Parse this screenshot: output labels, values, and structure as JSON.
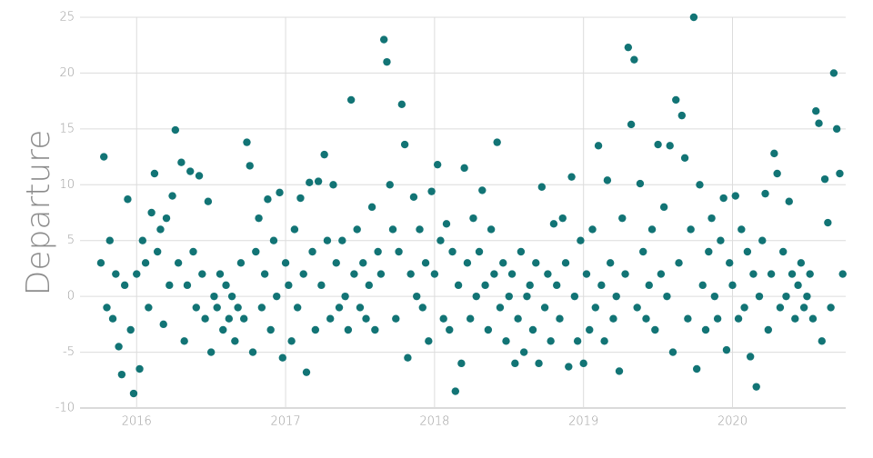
{
  "chart_data": {
    "type": "scatter",
    "y_label": "Departure",
    "color": "#127475",
    "grid": true,
    "xlim": [
      2015.62,
      2020.76
    ],
    "xticks": [
      2016,
      2017,
      2018,
      2019,
      2020
    ],
    "ylim": [
      -10,
      25
    ],
    "yticks": [
      -10,
      -5,
      0,
      5,
      10,
      15,
      20,
      25
    ],
    "x": [
      2015.76,
      2015.78,
      2015.8,
      2015.82,
      2015.84,
      2015.86,
      2015.88,
      2015.9,
      2015.92,
      2015.94,
      2015.96,
      2015.98,
      2016,
      2016.02,
      2016.04,
      2016.06,
      2016.08,
      2016.1,
      2016.12,
      2016.14,
      2016.16,
      2016.18,
      2016.2,
      2016.22,
      2016.24,
      2016.26,
      2016.28,
      2016.3,
      2016.32,
      2016.34,
      2016.36,
      2016.38,
      2016.4,
      2016.42,
      2016.44,
      2016.46,
      2016.48,
      2016.5,
      2016.52,
      2016.54,
      2016.56,
      2016.58,
      2016.6,
      2016.62,
      2016.64,
      2016.66,
      2016.68,
      2016.7,
      2016.72,
      2016.74,
      2016.76,
      2016.78,
      2016.8,
      2016.82,
      2016.84,
      2016.86,
      2016.88,
      2016.9,
      2016.92,
      2016.94,
      2016.96,
      2016.98,
      2017,
      2017.02,
      2017.04,
      2017.06,
      2017.08,
      2017.1,
      2017.12,
      2017.14,
      2017.16,
      2017.18,
      2017.2,
      2017.22,
      2017.24,
      2017.26,
      2017.28,
      2017.3,
      2017.32,
      2017.34,
      2017.36,
      2017.38,
      2017.4,
      2017.42,
      2017.44,
      2017.46,
      2017.48,
      2017.5,
      2017.52,
      2017.54,
      2017.56,
      2017.58,
      2017.6,
      2017.62,
      2017.64,
      2017.66,
      2017.68,
      2017.7,
      2017.72,
      2017.74,
      2017.76,
      2017.78,
      2017.8,
      2017.82,
      2017.84,
      2017.86,
      2017.88,
      2017.9,
      2017.92,
      2017.94,
      2017.96,
      2017.98,
      2018,
      2018.02,
      2018.04,
      2018.06,
      2018.08,
      2018.1,
      2018.12,
      2018.14,
      2018.16,
      2018.18,
      2018.2,
      2018.22,
      2018.24,
      2018.26,
      2018.28,
      2018.3,
      2018.32,
      2018.34,
      2018.36,
      2018.38,
      2018.4,
      2018.42,
      2018.44,
      2018.46,
      2018.48,
      2018.5,
      2018.52,
      2018.54,
      2018.56,
      2018.58,
      2018.6,
      2018.62,
      2018.64,
      2018.66,
      2018.68,
      2018.7,
      2018.72,
      2018.74,
      2018.76,
      2018.78,
      2018.8,
      2018.82,
      2018.84,
      2018.86,
      2018.88,
      2018.9,
      2018.92,
      2018.94,
      2018.96,
      2018.98,
      2019,
      2019.02,
      2019.04,
      2019.06,
      2019.08,
      2019.1,
      2019.12,
      2019.14,
      2019.16,
      2019.18,
      2019.2,
      2019.22,
      2019.24,
      2019.26,
      2019.28,
      2019.3,
      2019.32,
      2019.34,
      2019.36,
      2019.38,
      2019.4,
      2019.42,
      2019.44,
      2019.46,
      2019.48,
      2019.5,
      2019.52,
      2019.54,
      2019.56,
      2019.58,
      2019.6,
      2019.62,
      2019.64,
      2019.66,
      2019.68,
      2019.7,
      2019.72,
      2019.74,
      2019.76,
      2019.78,
      2019.8,
      2019.82,
      2019.84,
      2019.86,
      2019.88,
      2019.9,
      2019.92,
      2019.94,
      2019.96,
      2019.98,
      2020,
      2020.02,
      2020.04,
      2020.06,
      2020.08,
      2020.1,
      2020.12,
      2020.14,
      2020.16,
      2020.18,
      2020.2,
      2020.22,
      2020.24,
      2020.26,
      2020.28,
      2020.3,
      2020.32,
      2020.34,
      2020.36,
      2020.38,
      2020.4,
      2020.42,
      2020.44,
      2020.46,
      2020.48,
      2020.5,
      2020.52,
      2020.54,
      2020.56,
      2020.58,
      2020.6,
      2020.62,
      2020.64,
      2020.66,
      2020.68,
      2020.7,
      2020.72,
      2020.74
    ],
    "values": [
      3,
      12.5,
      -1,
      5,
      -2,
      2,
      -4.5,
      -7,
      1,
      8.7,
      -3,
      -8.7,
      2,
      -6.5,
      5,
      3,
      -1,
      7.5,
      11,
      4,
      6,
      -2.5,
      7,
      1,
      9,
      14.9,
      3,
      12,
      -4,
      1,
      11.2,
      4,
      -1,
      10.8,
      2,
      -2,
      8.5,
      -5,
      0,
      -1,
      2,
      -3,
      1,
      -2,
      0,
      -4,
      -1,
      3,
      -2,
      13.8,
      11.7,
      -5,
      4,
      7,
      -1,
      2,
      8.7,
      -3,
      5,
      0,
      9.3,
      -5.5,
      3,
      1,
      -4,
      6,
      -1,
      8.8,
      2,
      -6.8,
      10.2,
      4,
      -3,
      10.3,
      1,
      12.7,
      5,
      -2,
      10,
      3,
      -1,
      5,
      0,
      -3,
      17.6,
      2,
      6,
      -1,
      3,
      -2,
      1,
      8,
      -3,
      4,
      2,
      23,
      21,
      10,
      6,
      -2,
      4,
      17.2,
      13.6,
      -5.5,
      2,
      8.9,
      0,
      6,
      -1,
      3,
      -4,
      9.4,
      2,
      11.8,
      5,
      -2,
      6.5,
      -3,
      4,
      -8.5,
      1,
      -6,
      11.5,
      3,
      -2,
      7,
      0,
      4,
      9.5,
      1,
      -3,
      6,
      2,
      13.8,
      -1,
      3,
      -4,
      0,
      2,
      -6,
      -2,
      4,
      -5,
      0,
      1,
      -3,
      3,
      -6,
      9.8,
      -1,
      2,
      -4,
      6.5,
      1,
      -2,
      7,
      3,
      -6.3,
      10.7,
      0,
      -4,
      5,
      -6,
      2,
      -3,
      6,
      -1,
      13.5,
      1,
      -4,
      10.4,
      3,
      -2,
      0,
      -6.7,
      7,
      2,
      22.3,
      15.4,
      21.2,
      -1,
      10.1,
      4,
      -2,
      1,
      6,
      -3,
      13.6,
      2,
      8,
      0,
      13.5,
      -5,
      17.6,
      3,
      16.2,
      12.4,
      -2,
      6,
      25,
      -6.5,
      10,
      1,
      -3,
      4,
      7,
      0,
      -2,
      5,
      8.8,
      -4.8,
      3,
      1,
      9,
      -2,
      6,
      -1,
      4,
      -5.4,
      2,
      -8.1,
      0,
      5,
      9.2,
      -3,
      2,
      12.8,
      11,
      -1,
      4,
      0,
      8.5,
      2,
      -2,
      1,
      3,
      -1,
      0,
      2,
      -2,
      16.6,
      15.5,
      -4,
      10.5,
      6.6,
      -1,
      20,
      15,
      11,
      2
    ]
  }
}
